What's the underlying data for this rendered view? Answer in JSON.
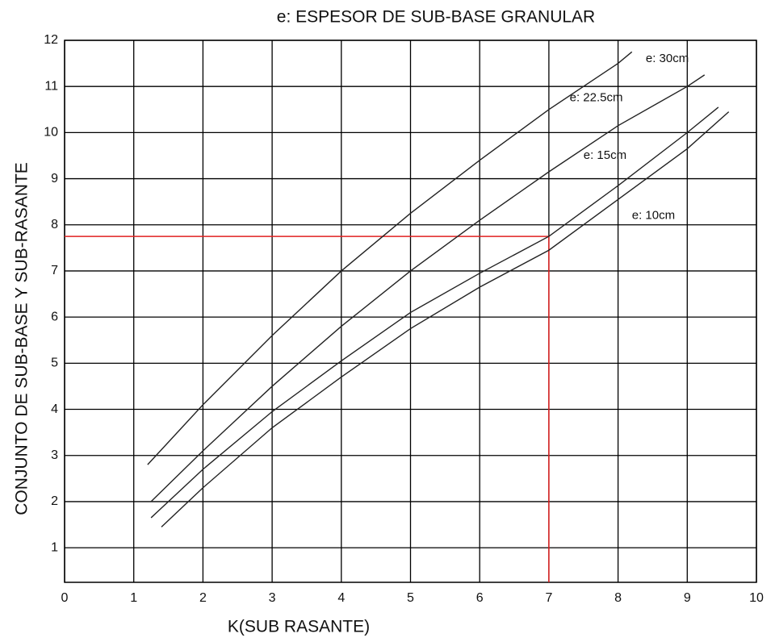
{
  "chart_data": {
    "type": "line",
    "title": "e: ESPESOR DE SUB-BASE GRANULAR",
    "x_label": "K(SUB RASANTE)",
    "y_label": "CONJUNTO DE SUB-BASE Y SUB-RASANTE",
    "xlim": [
      0,
      10
    ],
    "ylim": [
      0.25,
      12
    ],
    "xticks": [
      0,
      1,
      2,
      3,
      4,
      5,
      6,
      7,
      8,
      9,
      10
    ],
    "yticks": [
      1,
      2,
      3,
      4,
      5,
      6,
      7,
      8,
      9,
      10,
      11,
      12
    ],
    "grid": true,
    "series": [
      {
        "name": "e: 30cm",
        "color": "#222222",
        "x": [
          1.2,
          2,
          3,
          4,
          5,
          6,
          7,
          8,
          8.2
        ],
        "values": [
          2.8,
          4.1,
          5.6,
          7.0,
          8.25,
          9.4,
          10.5,
          11.5,
          11.75
        ]
      },
      {
        "name": "e: 22.5cm",
        "color": "#222222",
        "x": [
          1.25,
          2,
          3,
          4,
          5,
          6,
          7,
          8,
          9,
          9.25
        ],
        "values": [
          2.0,
          3.1,
          4.5,
          5.8,
          7.0,
          8.1,
          9.15,
          10.15,
          11.0,
          11.25
        ]
      },
      {
        "name": "e: 15cm",
        "color": "#222222",
        "x": [
          1.25,
          2,
          3,
          4,
          5,
          6,
          7,
          8,
          9,
          9.45
        ],
        "values": [
          1.65,
          2.7,
          3.95,
          5.05,
          6.1,
          6.95,
          7.75,
          8.85,
          10.0,
          10.55
        ]
      },
      {
        "name": "e: 10cm",
        "color": "#222222",
        "x": [
          1.4,
          2,
          3,
          4,
          5,
          6,
          7,
          8,
          9,
          9.6
        ],
        "values": [
          1.45,
          2.3,
          3.6,
          4.7,
          5.75,
          6.65,
          7.45,
          8.55,
          9.65,
          10.45
        ]
      }
    ],
    "reference": {
      "x": 7,
      "y": 7.75,
      "color": "#e02020"
    }
  }
}
